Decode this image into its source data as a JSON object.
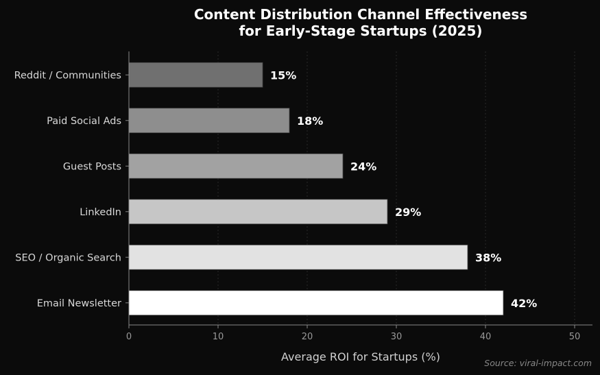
{
  "chart_data": {
    "type": "bar",
    "orientation": "horizontal",
    "title": "Content Distribution Channel Effectiveness\nfor Early-Stage Startups (2025)",
    "xlabel": "Average ROI for Startups (%)",
    "ylabel": "",
    "categories": [
      "Reddit / Communities",
      "Paid Social Ads",
      "Guest Posts",
      "LinkedIn",
      "SEO / Organic Search",
      "Email Newsletter"
    ],
    "values": [
      15,
      18,
      24,
      29,
      38,
      42
    ],
    "data_labels": [
      "15%",
      "18%",
      "24%",
      "29%",
      "38%",
      "42%"
    ],
    "bar_colors": [
      "#707070",
      "#8e8e8e",
      "#a2a2a2",
      "#c6c6c6",
      "#e2e2e2",
      "#ffffff"
    ],
    "xlim": [
      0,
      52
    ],
    "xticks": [
      0,
      10,
      20,
      30,
      40,
      50
    ],
    "grid": "vertical, faint",
    "background": "#0b0b0b",
    "source": "Source: viral-impact.com"
  }
}
